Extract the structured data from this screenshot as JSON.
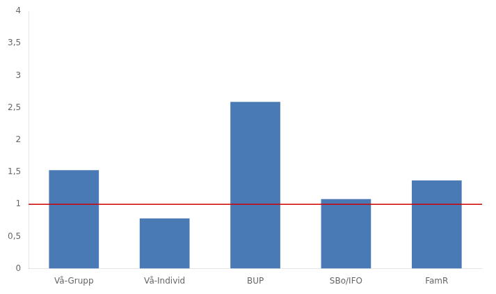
{
  "chart_data": {
    "type": "bar",
    "categories": [
      "Vå-Grupp",
      "Vå-Individ",
      "BUP",
      "SBo/IFO",
      "FamR"
    ],
    "values": [
      1.53,
      0.78,
      2.59,
      1.08,
      1.37
    ],
    "color": "#4a7ab5",
    "reference_line": {
      "value": 1.0,
      "color": "#cc0000"
    },
    "ylim": [
      0,
      4
    ],
    "yticks": [
      0,
      {
        "value": 0.5,
        "label": "0,5"
      },
      1,
      {
        "value": 1.5,
        "label": "1,5"
      },
      2,
      {
        "value": 2.5,
        "label": "2,5"
      },
      3,
      {
        "value": 3.5,
        "label": "3,5"
      },
      4
    ],
    "grid": false,
    "legend": false
  }
}
